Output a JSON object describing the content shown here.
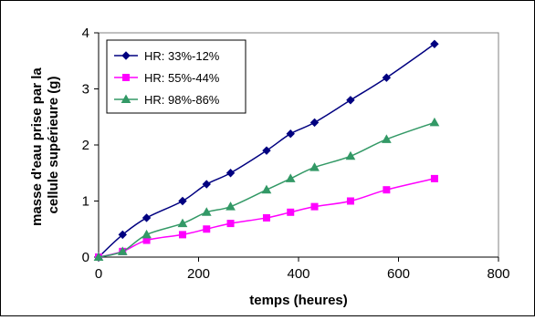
{
  "chart_data": {
    "type": "line",
    "title": "",
    "xlabel": "temps (heures)",
    "ylabel_lines": [
      "masse d'eau prise par la",
      "cellule supérieure (g)"
    ],
    "xlim": [
      0,
      800
    ],
    "ylim": [
      0,
      4
    ],
    "xticks": [
      "0",
      "200",
      "400",
      "600",
      "800"
    ],
    "yticks": [
      "0",
      "1",
      "2",
      "3",
      "4"
    ],
    "legend_position": "top-left",
    "grid": false,
    "series": [
      {
        "name": "HR: 33%-12%",
        "color": "#000080",
        "marker": "diamond",
        "x": [
          0,
          48,
          96,
          168,
          216,
          264,
          336,
          384,
          432,
          504,
          576,
          672
        ],
        "y": [
          0,
          0.4,
          0.7,
          1.0,
          1.3,
          1.5,
          1.9,
          2.2,
          2.4,
          2.8,
          3.2,
          3.8
        ]
      },
      {
        "name": "HR: 55%-44%",
        "color": "#ff00ff",
        "marker": "square",
        "x": [
          0,
          48,
          96,
          168,
          216,
          264,
          336,
          384,
          432,
          504,
          576,
          672
        ],
        "y": [
          0,
          0.1,
          0.3,
          0.4,
          0.5,
          0.6,
          0.7,
          0.8,
          0.9,
          1.0,
          1.2,
          1.4
        ]
      },
      {
        "name": "HR: 98%-86%",
        "color": "#339966",
        "marker": "triangle",
        "x": [
          0,
          48,
          96,
          168,
          216,
          264,
          336,
          384,
          432,
          504,
          576,
          672
        ],
        "y": [
          0,
          0.1,
          0.4,
          0.6,
          0.8,
          0.9,
          1.2,
          1.4,
          1.6,
          1.8,
          2.1,
          2.4
        ]
      }
    ]
  }
}
